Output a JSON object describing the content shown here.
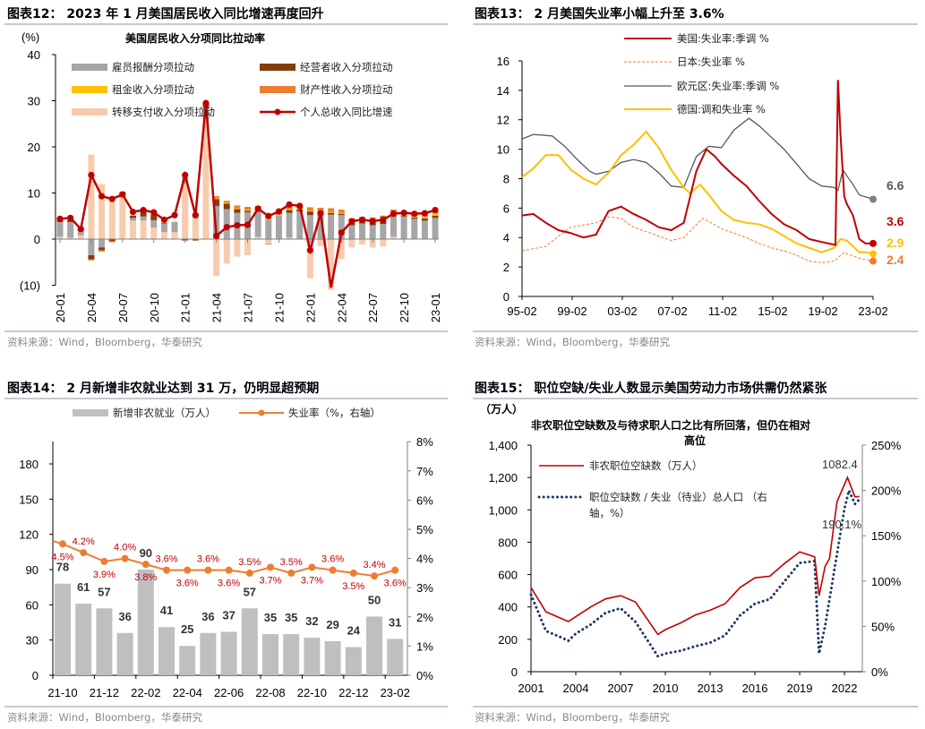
{
  "colors": {
    "red": "#c00000",
    "gray": "#a6a6a6",
    "brown": "#843c0c",
    "yellow": "#ffc000",
    "orange": "#ed7d31",
    "pink": "#f8cbad",
    "darkgray": "#595959",
    "navy": "#1f3864",
    "bar14": "#bfbfbf",
    "line14": "#ed7d31",
    "label14": "#c00000"
  },
  "source": "资料来源：Wind，Bloomberg，华泰研究",
  "chart_data": [
    {
      "id": "fig12",
      "type": "bar",
      "title": "图表12： 2023 年 1 月美国居民收入同比增速再度回升",
      "subtitle": "美国居民收入分项同比拉动率",
      "ylabel": "(%)",
      "ylim": [
        -10,
        40
      ],
      "yticks": [
        "40",
        "30",
        "20",
        "10",
        "0",
        "(10)"
      ],
      "ytick_values": [
        40,
        30,
        20,
        10,
        0,
        -10
      ],
      "xtick_labels": [
        "20-01",
        "20-04",
        "20-07",
        "20-10",
        "21-01",
        "21-04",
        "21-07",
        "21-10",
        "22-01",
        "22-04",
        "22-07",
        "22-10",
        "23-01"
      ],
      "legend": [
        "雇员报酬分项拉动",
        "经营者收入分项拉动",
        "租金收入分项拉动",
        "财产性收入分项拉动",
        "转移支付收入分项拉动",
        "个人总收入同比增速"
      ],
      "series": [
        {
          "name": "雇员报酬分项拉动",
          "values": [
            3.2,
            3.4,
            1.0,
            -3.5,
            -1.8,
            0,
            0.4,
            0.6,
            0.9,
            1.6,
            1.9,
            2.2,
            1.3,
            0.3,
            2.5,
            7.2,
            6.5,
            5.7,
            5.8,
            5.7,
            4.2,
            5.1,
            5.4,
            6.0,
            5.2,
            5.2,
            5.3,
            5.2,
            3.0,
            3.4,
            3.0,
            3.3,
            4.7,
            4.9,
            4.4,
            4.0,
            4.6
          ]
        },
        {
          "name": "经营者收入分项拉动",
          "values": [
            0.3,
            0.4,
            0.2,
            -0.9,
            -0.6,
            -0.4,
            0.3,
            0.5,
            1.0,
            1.2,
            0.1,
            -0.1,
            -0.3,
            -0.3,
            0.8,
            1.5,
            1.2,
            0.8,
            0.3,
            0.2,
            -0.1,
            -0.1,
            0.6,
            0.4,
            0.8,
            0.6,
            0.4,
            0.3,
            0.4,
            0.3,
            0.5,
            0.5,
            0.3,
            0.2,
            0.3,
            0.5,
            0.5
          ]
        },
        {
          "name": "租金收入分项拉动",
          "values": [
            0.1,
            0.1,
            0.1,
            0.1,
            0.1,
            0.1,
            0.1,
            0.1,
            0.1,
            0.1,
            0.1,
            0.1,
            0.1,
            0.1,
            0.1,
            0.2,
            0.2,
            0.2,
            0.2,
            0.2,
            0.2,
            0.2,
            0.2,
            0.2,
            0.2,
            0.2,
            0.2,
            0.2,
            0.3,
            0.3,
            0.3,
            0.3,
            0.3,
            0.3,
            0.3,
            0.4,
            0.5
          ]
        },
        {
          "name": "财产性收入分项拉动",
          "values": [
            0.2,
            0.2,
            0.1,
            -0.2,
            -0.3,
            -0.3,
            0,
            0,
            0,
            0,
            0,
            0,
            0,
            0,
            0.2,
            0.4,
            0.4,
            0.6,
            0.7,
            0.6,
            0.5,
            0.6,
            0.6,
            0.6,
            0.7,
            0.8,
            0.8,
            0.7,
            0.8,
            0.8,
            0.9,
            1.0,
            0.6,
            0.5,
            0.4,
            0.4,
            0.4
          ]
        },
        {
          "name": "转移支付收入分项拉动",
          "values": [
            0.5,
            0.3,
            0.8,
            18.2,
            11.8,
            8,
            9.5,
            4,
            4,
            2.5,
            1.5,
            1.5,
            12,
            4.5,
            26,
            -8,
            -5.3,
            -3.8,
            -3.5,
            0.5,
            -1,
            0,
            0.3,
            0,
            -8.5,
            -1.5,
            -11,
            -4.3,
            -1.8,
            -1.2,
            -1.8,
            -1.6,
            0.5,
            0,
            0,
            0,
            0
          ]
        },
        {
          "name": "个人总收入同比增速",
          "type": "line",
          "values": [
            4.4,
            4.6,
            2.2,
            13.9,
            9.3,
            8.7,
            9.7,
            5.9,
            6.3,
            5.8,
            4.2,
            5.2,
            13.9,
            5.2,
            29.5,
            0.7,
            2.6,
            3.0,
            3.1,
            6.6,
            5.0,
            6.0,
            7.5,
            7.2,
            -2.4,
            5.6,
            -11,
            1.4,
            3.9,
            4.2,
            3.9,
            4.2,
            5.5,
            5.7,
            5.5,
            5.6,
            6.3
          ]
        }
      ]
    },
    {
      "id": "fig13",
      "type": "line",
      "title": "图表13： 2 月美国失业率小幅上升至 3.6%",
      "ylim": [
        0,
        16
      ],
      "yticks": [
        "16",
        "14",
        "12",
        "10",
        "8",
        "6",
        "4",
        "2",
        "0"
      ],
      "ytick_values": [
        16,
        14,
        12,
        10,
        8,
        6,
        4,
        2,
        0
      ],
      "xtick_labels": [
        "95-02",
        "99-02",
        "03-02",
        "07-02",
        "11-02",
        "15-02",
        "19-02",
        "23-02"
      ],
      "xtick_values": [
        1995.1,
        1999.1,
        2003.1,
        2007.1,
        2011.1,
        2015.1,
        2019.1,
        2023.1
      ],
      "series": [
        {
          "name": "美国:失业率:季调 %",
          "end_label": "3.6",
          "x": [
            1995.1,
            1996,
            1997,
            1998,
            1999,
            2000,
            2001,
            2002,
            2003,
            2004,
            2005,
            2006,
            2007,
            2008,
            2009,
            2009.8,
            2010.5,
            2011,
            2012,
            2013,
            2014,
            2015,
            2016,
            2017,
            2018,
            2019,
            2020.1,
            2020.3,
            2020.5,
            2020.8,
            2021,
            2021.5,
            2022,
            2022.5,
            2023.1
          ],
          "y": [
            5.5,
            5.6,
            5.0,
            4.5,
            4.3,
            4.0,
            4.2,
            5.8,
            6.1,
            5.6,
            5.2,
            4.7,
            4.5,
            5.0,
            8.5,
            10.0,
            9.5,
            9.0,
            8.2,
            7.5,
            6.5,
            5.6,
            4.9,
            4.5,
            3.9,
            3.7,
            3.5,
            14.7,
            11,
            6.8,
            6.3,
            5.5,
            3.9,
            3.6,
            3.6
          ]
        },
        {
          "name": "日本:失业率 %",
          "end_label": "2.4",
          "x": [
            1995.1,
            1997,
            1998,
            1999,
            2001,
            2002,
            2003,
            2004,
            2005,
            2006,
            2007,
            2008,
            2009.5,
            2010,
            2011,
            2012,
            2013,
            2014,
            2015,
            2016,
            2017,
            2018,
            2019,
            2020,
            2020.8,
            2021,
            2022,
            2023.1
          ],
          "y": [
            3.1,
            3.4,
            4.1,
            4.7,
            5.0,
            5.4,
            5.3,
            4.7,
            4.4,
            4.1,
            3.8,
            4.0,
            5.3,
            5.1,
            4.6,
            4.3,
            4.0,
            3.6,
            3.3,
            3.1,
            2.8,
            2.4,
            2.3,
            2.4,
            3.0,
            2.9,
            2.6,
            2.4
          ]
        },
        {
          "name": "欧元区:失业率:季调 %",
          "end_label": "6.6",
          "x": [
            1995.1,
            1996,
            1997.5,
            1998.5,
            1999.5,
            2000.5,
            2001,
            2002,
            2003,
            2004,
            2005,
            2006,
            2007,
            2008,
            2009,
            2010,
            2011,
            2012,
            2013.2,
            2014,
            2015,
            2016,
            2017,
            2018,
            2019,
            2020,
            2020.3,
            2020.7,
            2021,
            2021.5,
            2022,
            2023.1
          ],
          "y": [
            10.7,
            11.0,
            10.9,
            10.2,
            9.3,
            8.5,
            8.3,
            8.5,
            9.1,
            9.3,
            9.1,
            8.4,
            7.5,
            7.4,
            9.5,
            10.2,
            10.1,
            11.3,
            12.1,
            11.6,
            10.8,
            10.0,
            9.0,
            8.0,
            7.5,
            7.4,
            7.2,
            8.6,
            8.2,
            7.6,
            6.9,
            6.6
          ]
        },
        {
          "name": "德国:调和失业率 %",
          "end_label": "2.9",
          "x": [
            1995.1,
            1996,
            1997,
            1998,
            1999,
            2000,
            2001,
            2002,
            2003,
            2004,
            2005,
            2006,
            2007,
            2008,
            2008.5,
            2009.3,
            2010,
            2011,
            2012,
            2013,
            2014,
            2015,
            2016,
            2017,
            2018,
            2019,
            2020,
            2020.5,
            2021,
            2022,
            2022.5,
            2023.1
          ],
          "y": [
            8.1,
            8.7,
            9.6,
            9.6,
            8.6,
            8.0,
            7.6,
            8.4,
            9.6,
            10.3,
            11.2,
            10.1,
            8.6,
            7.4,
            7.0,
            7.6,
            6.9,
            5.8,
            5.2,
            5.0,
            4.9,
            4.6,
            4.1,
            3.6,
            3.3,
            3.0,
            3.3,
            3.9,
            3.8,
            3.0,
            3.0,
            2.9
          ]
        }
      ]
    },
    {
      "id": "fig14",
      "type": "bar",
      "title": "图表14： 2 月新增非农就业达到 31 万，仍明显超预期",
      "categories": [
        "21-10",
        "21-11",
        "21-12",
        "22-01",
        "22-02",
        "22-03",
        "22-04",
        "22-05",
        "22-06",
        "22-07",
        "22-08",
        "22-09",
        "22-10",
        "22-11",
        "22-12",
        "23-01",
        "23-02"
      ],
      "xtick_labels": [
        "21-10",
        "21-12",
        "22-02",
        "22-04",
        "22-06",
        "22-08",
        "22-10",
        "22-12",
        "23-02"
      ],
      "yticks_left": [
        "180",
        "150",
        "120",
        "90",
        "60",
        "30",
        "0"
      ],
      "ytick_values_left": [
        180,
        150,
        120,
        90,
        60,
        30,
        0
      ],
      "yticks_right": [
        "8%",
        "7%",
        "6%",
        "5%",
        "4%",
        "3%",
        "2%",
        "1%",
        "0%"
      ],
      "ytick_values_right": [
        8,
        7,
        6,
        5,
        4,
        3,
        2,
        1,
        0
      ],
      "series": [
        {
          "name": "新增非农就业（万人）",
          "values": [
            78,
            61,
            57,
            36,
            90,
            41,
            25,
            36,
            37,
            57,
            35,
            35,
            32,
            29,
            24,
            50,
            31
          ],
          "labels": [
            "78",
            "61",
            "57",
            "36",
            "90",
            "41",
            "25",
            "36",
            "37",
            "57",
            "35",
            "35",
            "32",
            "29",
            "24",
            "50",
            "31"
          ]
        },
        {
          "name": "失业率（%，右轴）",
          "type": "line",
          "values": [
            4.5,
            4.2,
            3.9,
            4.0,
            3.8,
            3.6,
            3.6,
            3.6,
            3.6,
            3.5,
            3.7,
            3.5,
            3.7,
            3.6,
            3.5,
            3.4,
            3.6
          ],
          "labels": [
            "4.5%",
            "4.2%",
            "3.9%",
            "4.0%",
            "3.8%",
            "3.6%",
            "3.6%",
            "3.6%",
            "3.6%",
            "3.5%",
            "3.7%",
            "3.5%",
            "3.7%",
            "3.6%",
            "3.5%",
            "3.4%",
            "3.6%"
          ]
        }
      ]
    },
    {
      "id": "fig15",
      "type": "line",
      "title": "图表15： 职位空缺/失业人数显示美国劳动力市场供需仍然紧张",
      "subtitle_line1": "非农职位空缺数及与待求职人口之比有所回落，但仍在相对",
      "subtitle_line2": "高位",
      "ylabel": "（万人）",
      "ylim": [
        0,
        1400
      ],
      "ylim_right": [
        0,
        250
      ],
      "yticks_left": [
        "1,400",
        "1,200",
        "1,000",
        "800",
        "600",
        "400",
        "200",
        "0"
      ],
      "ytick_values_left": [
        1400,
        1200,
        1000,
        800,
        600,
        400,
        200,
        0
      ],
      "yticks_right": [
        "250%",
        "200%",
        "150%",
        "100%",
        "50%",
        "0%"
      ],
      "ytick_values_right": [
        250,
        200,
        150,
        100,
        50,
        0
      ],
      "xtick_labels": [
        "2001",
        "2004",
        "2007",
        "2010",
        "2013",
        "2016",
        "2019",
        "2022"
      ],
      "xtick_values": [
        2001,
        2004,
        2007,
        2010,
        2013,
        2016,
        2019,
        2022
      ],
      "annotations": [
        "1082.4",
        "190.1%"
      ],
      "series": [
        {
          "name": "非农职位空缺数（万人）",
          "x": [
            2001,
            2002,
            2003,
            2003.5,
            2004,
            2005,
            2006,
            2007,
            2008,
            2009.5,
            2010,
            2011,
            2012,
            2013,
            2014,
            2015,
            2016,
            2017,
            2018,
            2019,
            2020,
            2020.3,
            2020.7,
            2021,
            2021.5,
            2022.2,
            2022.7,
            2023
          ],
          "y": [
            520,
            370,
            330,
            310,
            340,
            400,
            450,
            470,
            430,
            230,
            260,
            300,
            350,
            380,
            420,
            520,
            580,
            590,
            670,
            740,
            710,
            470,
            650,
            700,
            1050,
            1200,
            1080,
            1082
          ]
        },
        {
          "name": "职位空缺数 / 失业（待业）总人口 （右轴，%）",
          "legend_line1": "职位空缺数 / 失业（待业）总人口 （右",
          "legend_line2": "轴，%）",
          "x": [
            2001,
            2002,
            2003,
            2003.5,
            2004,
            2005,
            2006,
            2007,
            2008,
            2009.5,
            2010,
            2011,
            2012,
            2013,
            2014,
            2015,
            2016,
            2017,
            2018,
            2019,
            2020,
            2020.3,
            2020.7,
            2021,
            2021.5,
            2022,
            2022.3,
            2022.7,
            2023
          ],
          "y": [
            85,
            45,
            38,
            34,
            42,
            52,
            65,
            70,
            55,
            17,
            20,
            23,
            28,
            32,
            40,
            62,
            75,
            80,
            100,
            120,
            122,
            20,
            50,
            80,
            130,
            180,
            200,
            185,
            190
          ]
        }
      ]
    }
  ]
}
